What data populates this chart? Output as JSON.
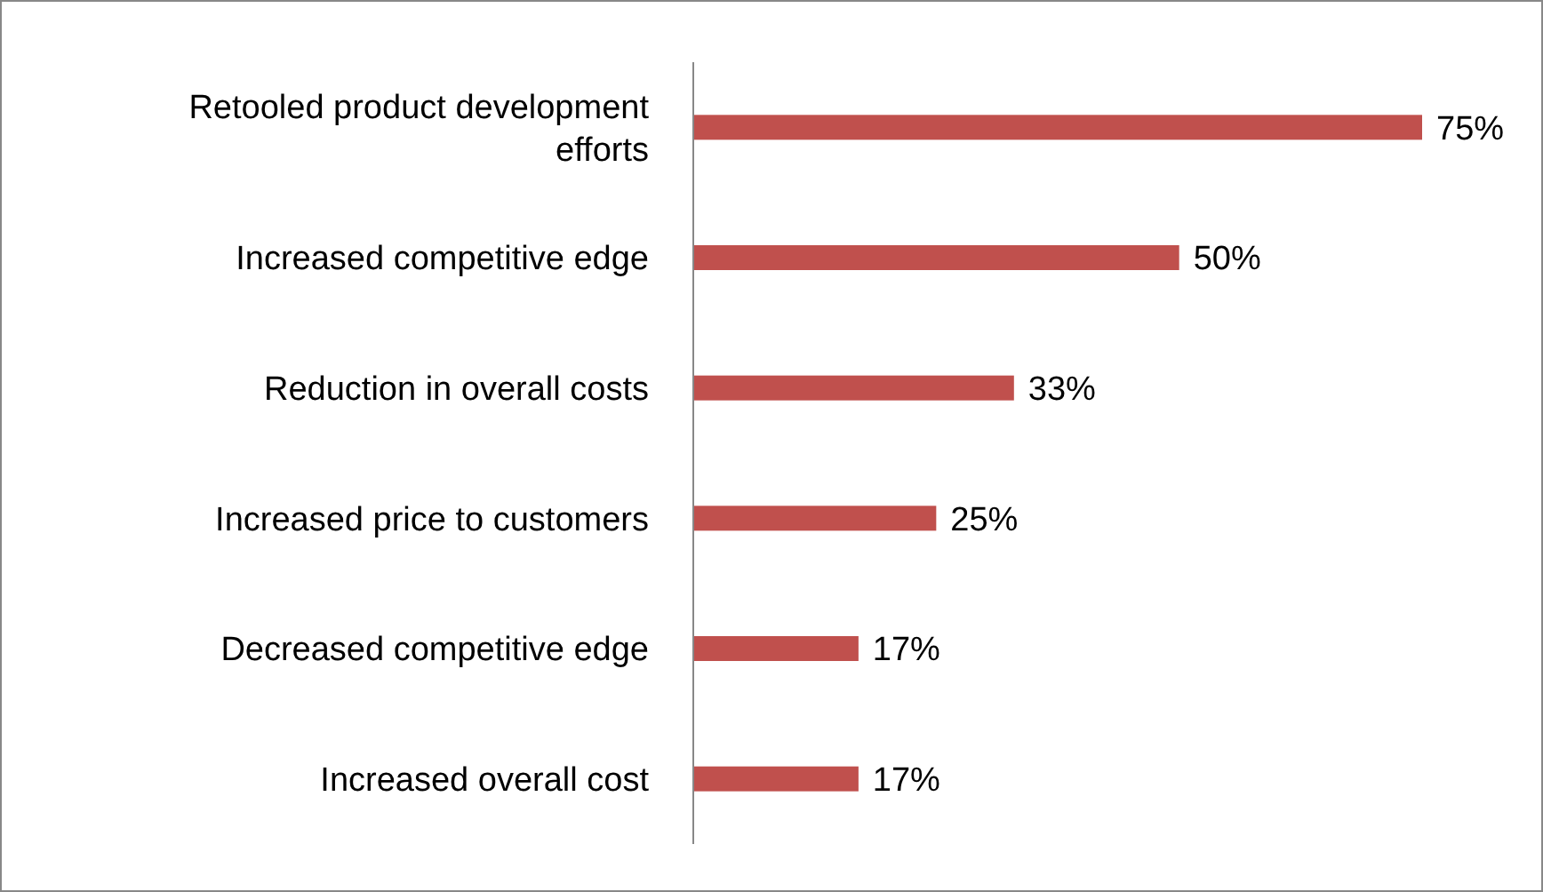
{
  "chart_data": {
    "type": "bar",
    "orientation": "horizontal",
    "categories": [
      "Retooled product development efforts",
      "Increased competitive edge",
      "Reduction in overall costs",
      "Increased price to customers",
      "Decreased competitive edge",
      "Increased overall cost"
    ],
    "values": [
      75,
      50,
      33,
      25,
      17,
      17
    ],
    "value_labels": [
      "75%",
      "50%",
      "33%",
      "25%",
      "17%",
      "17%"
    ],
    "color": "#c0504d"
  }
}
